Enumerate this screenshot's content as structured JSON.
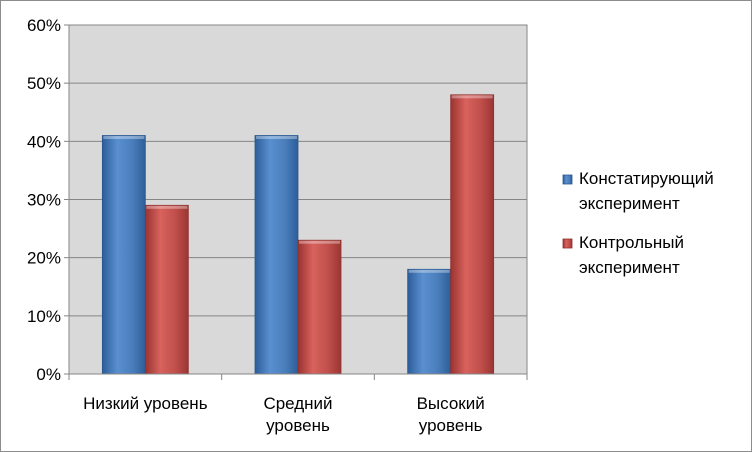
{
  "chart_data": {
    "type": "bar",
    "categories": [
      [
        "Низкий уровень"
      ],
      [
        "Средний",
        "уровень"
      ],
      [
        "Высокий",
        "уровень"
      ]
    ],
    "series": [
      {
        "name": [
          "Констатирующий",
          "эксперимент"
        ],
        "values": [
          41,
          41,
          18
        ],
        "color": "#4a7ebb"
      },
      {
        "name": [
          "Контрольный",
          "эксперимент"
        ],
        "values": [
          29,
          23,
          48
        ],
        "color": "#be4b48"
      }
    ],
    "y_ticks": [
      "0%",
      "10%",
      "20%",
      "30%",
      "40%",
      "50%",
      "60%"
    ],
    "ylim": [
      0,
      60
    ],
    "y_unit": "percent",
    "grid": true,
    "plot_background": "#d9d9d9",
    "legend_position": "right"
  }
}
